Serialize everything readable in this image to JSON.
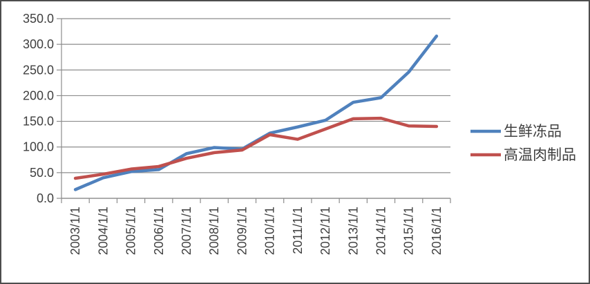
{
  "chart_data": {
    "type": "line",
    "title": "",
    "xlabel": "",
    "ylabel": "",
    "categories": [
      "2003/1/1",
      "2004/1/1",
      "2005/1/1",
      "2006/1/1",
      "2007/1/1",
      "2008/1/1",
      "2009/1/1",
      "2010/1/1",
      "2011/1/1",
      "2012/1/1",
      "2013/1/1",
      "2014/1/1",
      "2015/1/1",
      "2016/1/1"
    ],
    "series": [
      {
        "name": "生鲜冻品",
        "color": "#4F81BD",
        "values": [
          17,
          40,
          52,
          56,
          87,
          99,
          96,
          127,
          139,
          152,
          187,
          196,
          246,
          316
        ]
      },
      {
        "name": "高温肉制品",
        "color": "#C0504D",
        "values": [
          39,
          47,
          57,
          62,
          78,
          89,
          94,
          124,
          115,
          135,
          155,
          156,
          141,
          140
        ]
      }
    ],
    "ylim": [
      0,
      350
    ],
    "ytick_step": 50,
    "ytick_labels": [
      "0.0",
      "50.0",
      "100.0",
      "150.0",
      "200.0",
      "250.0",
      "300.0",
      "350.0"
    ],
    "grid": true,
    "legend_position": "right"
  },
  "style": {
    "grid_color": "#8c8c8c",
    "axis_color": "#8c8c8c",
    "text_color": "#3f3f3f",
    "line_width": 4.5
  }
}
